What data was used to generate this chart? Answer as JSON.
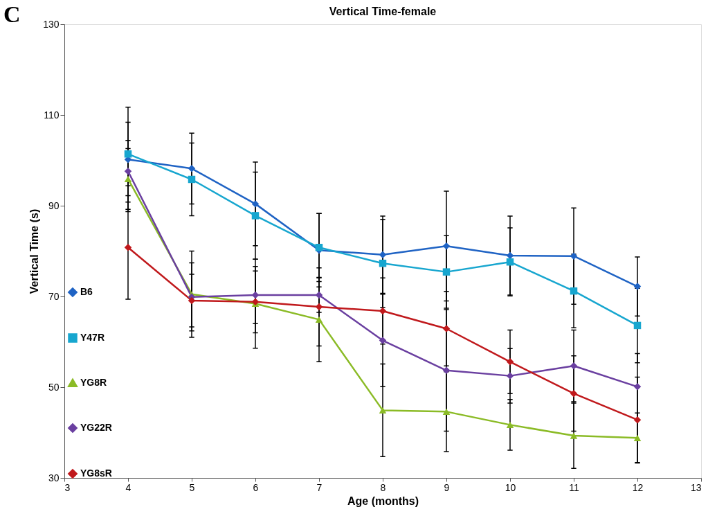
{
  "chart_data": {
    "type": "line",
    "title": "Vertical Time-female",
    "xlabel": "Age (months)",
    "ylabel": "Vertical Time (s)",
    "annotations": [
      "C"
    ],
    "x": [
      4,
      5,
      6,
      7,
      8,
      9,
      10,
      11,
      12
    ],
    "xlim": [
      3,
      13
    ],
    "xticks": [
      3,
      4,
      5,
      6,
      7,
      8,
      9,
      10,
      11,
      12,
      13
    ],
    "ylim": [
      30,
      130
    ],
    "yticks": [
      30,
      50,
      70,
      90,
      110,
      130
    ],
    "grid": false,
    "legend": "left",
    "line_style": "solid",
    "series": [
      {
        "name": "B6",
        "color": "#1f63c4",
        "marker": "diamond",
        "values": [
          100.2,
          98.2,
          90.4,
          80.2,
          79.2,
          81.1,
          79,
          78.9,
          72.2
        ],
        "errors": [
          11.5,
          7.8,
          9.2,
          8.1,
          8.5,
          12.1,
          8.7,
          10.6,
          6.5
        ]
      },
      {
        "name": "Y47R",
        "color": "#17a6cf",
        "marker": "square",
        "values": [
          101.4,
          95.8,
          87.8,
          80.8,
          77.3,
          75.4,
          77.6,
          71.2,
          63.6
        ],
        "errors": [
          7,
          8,
          9.6,
          7.5,
          9.7,
          8,
          7.5,
          8.1,
          8.2
        ]
      },
      {
        "name": "YG8R",
        "color": "#8bbb26",
        "marker": "triangle",
        "values": [
          95.9,
          70.5,
          68.4,
          64.9,
          44.9,
          44.6,
          41.7,
          39.3,
          38.8
        ],
        "errors": [
          6.7,
          9.5,
          9.8,
          9.3,
          10.2,
          8.8,
          5.6,
          7.2,
          5.5
        ]
      },
      {
        "name": "YG22R",
        "color": "#6a3fa0",
        "marker": "diamond",
        "values": [
          97.6,
          69.9,
          70.3,
          70.3,
          60.3,
          53.7,
          52.5,
          54.7,
          50.1
        ],
        "errors": [
          6.8,
          7.5,
          6.3,
          3.8,
          10.2,
          13.4,
          6,
          7.9,
          7.3
        ]
      },
      {
        "name": "YG8sR",
        "color": "#c0191c",
        "marker": "diamond",
        "values": [
          80.8,
          69.1,
          68.8,
          67.7,
          66.8,
          62.9,
          55.6,
          48.6,
          42.8
        ],
        "errors": [
          11.4,
          5.8,
          6.8,
          8.6,
          7.3,
          8.2,
          7,
          8.3,
          9.4
        ]
      }
    ]
  }
}
